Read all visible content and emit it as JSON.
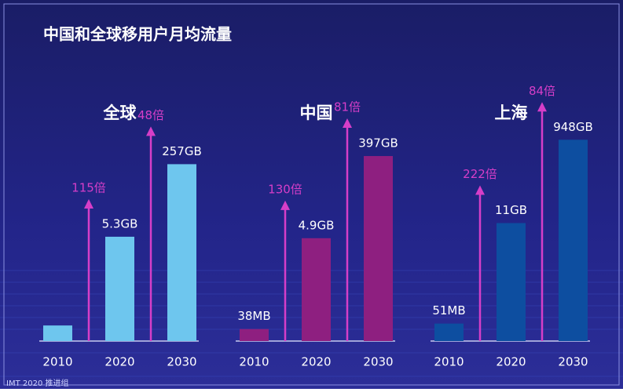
{
  "title": "中国和全球移用户月均流量",
  "source": "IMT 2020 推进组",
  "chart_data": [
    {
      "type": "bar",
      "title": "全球",
      "categories": [
        "2010",
        "2020",
        "2030"
      ],
      "values": [
        0.046,
        5.3,
        257
      ],
      "value_labels": [
        null,
        "5.3GB",
        "257GB"
      ],
      "growth_labels": [
        "115倍",
        "48倍"
      ],
      "color": "#6ec6ee",
      "ylim": [
        0.02,
        1000
      ],
      "log_scale": true
    },
    {
      "type": "bar",
      "title": "中国",
      "categories": [
        "2010",
        "2020",
        "2030"
      ],
      "values": [
        0.038,
        4.9,
        397
      ],
      "value_labels": [
        "38MB",
        "4.9GB",
        "397GB"
      ],
      "growth_labels": [
        "130倍",
        "81倍"
      ],
      "color": "#8e1f80",
      "ylim": [
        0.02,
        1000
      ],
      "log_scale": true
    },
    {
      "type": "bar",
      "title": "上海",
      "categories": [
        "2010",
        "2020",
        "2030"
      ],
      "values": [
        0.051,
        11,
        948
      ],
      "value_labels": [
        "51MB",
        "11GB",
        "948GB"
      ],
      "growth_labels": [
        "222倍",
        "84倍"
      ],
      "color": "#0d4ea0",
      "ylim": [
        0.02,
        1000
      ],
      "log_scale": true
    }
  ]
}
